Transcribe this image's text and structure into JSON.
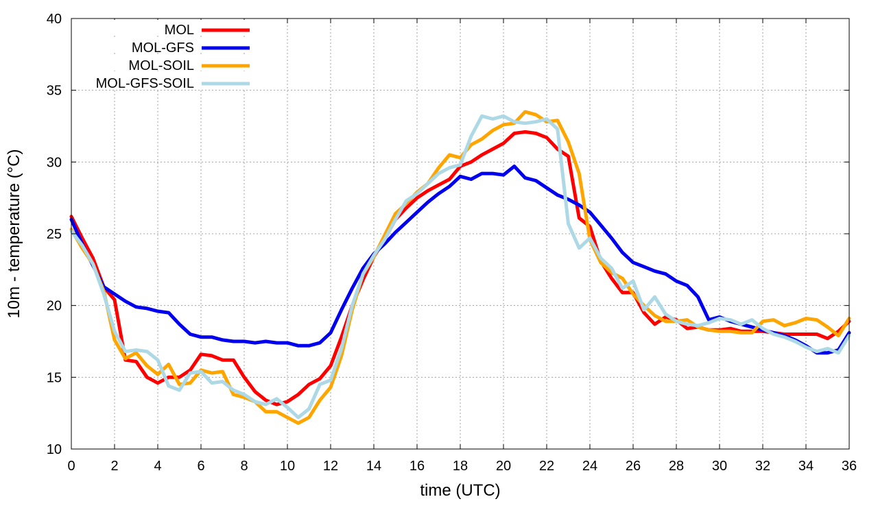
{
  "chart_data": {
    "type": "line",
    "title": "",
    "xlabel": "time (UTC)",
    "ylabel": "10m - temperature (°C)",
    "xlim": [
      0,
      36
    ],
    "ylim": [
      10,
      40
    ],
    "xticks": [
      0,
      2,
      4,
      6,
      8,
      10,
      12,
      14,
      16,
      18,
      20,
      22,
      24,
      26,
      28,
      30,
      32,
      34,
      36
    ],
    "yticks": [
      10,
      15,
      20,
      25,
      30,
      35,
      40
    ],
    "grid": true,
    "legend_position": "top-left",
    "series": [
      {
        "name": "MOL",
        "color": "#ff0000",
        "x": [
          0,
          0.5,
          1,
          1.5,
          2,
          2.5,
          3,
          3.5,
          4,
          4.5,
          5,
          5.5,
          6,
          6.5,
          7,
          7.5,
          8,
          8.5,
          9,
          9.5,
          10,
          10.5,
          11,
          11.5,
          12,
          12.5,
          13,
          13.5,
          14,
          14.5,
          15,
          15.5,
          16,
          16.5,
          17,
          17.5,
          18,
          18.5,
          19,
          19.5,
          20,
          20.5,
          21,
          21.5,
          22,
          22.5,
          23,
          23.5,
          24,
          24.5,
          25,
          25.5,
          26,
          26.5,
          27,
          27.5,
          28,
          28.5,
          29,
          29.5,
          30,
          30.5,
          31,
          31.5,
          32,
          32.5,
          33,
          33.5,
          34,
          34.5,
          35,
          35.5,
          36
        ],
        "y": [
          26.2,
          24.7,
          23.3,
          21.3,
          20.4,
          16.2,
          16.1,
          15.0,
          14.6,
          15.0,
          15.0,
          15.5,
          16.6,
          16.5,
          16.2,
          16.2,
          15.0,
          14.0,
          13.4,
          13.1,
          13.3,
          13.8,
          14.5,
          14.9,
          15.8,
          17.8,
          20.0,
          21.8,
          23.4,
          24.6,
          26.0,
          26.8,
          27.5,
          28.0,
          28.4,
          28.8,
          29.7,
          30.0,
          30.5,
          30.9,
          31.3,
          32.0,
          32.1,
          32.0,
          31.7,
          30.9,
          30.4,
          26.1,
          25.5,
          23.1,
          21.9,
          20.9,
          20.9,
          19.5,
          18.7,
          19.2,
          19.0,
          18.4,
          18.5,
          18.3,
          18.3,
          18.4,
          18.2,
          18.2,
          18.2,
          18.1,
          18.0,
          18.0,
          18.0,
          18.0,
          17.7,
          18.2,
          18.9
        ]
      },
      {
        "name": "MOL-GFS",
        "color": "#0000ee",
        "x": [
          0,
          0.5,
          1,
          1.5,
          2,
          2.5,
          3,
          3.5,
          4,
          4.5,
          5,
          5.5,
          6,
          6.5,
          7,
          7.5,
          8,
          8.5,
          9,
          9.5,
          10,
          10.5,
          11,
          11.5,
          12,
          12.5,
          13,
          13.5,
          14,
          14.5,
          15,
          15.5,
          16,
          16.5,
          17,
          17.5,
          18,
          18.5,
          19,
          19.5,
          20,
          20.5,
          21,
          21.5,
          22,
          22.5,
          23,
          23.5,
          24,
          24.5,
          25,
          25.5,
          26,
          26.5,
          27,
          27.5,
          28,
          28.5,
          29,
          29.5,
          30,
          30.5,
          31,
          31.5,
          32,
          32.5,
          33,
          33.5,
          34,
          34.5,
          35,
          35.5,
          36
        ],
        "y": [
          26.0,
          24.3,
          22.8,
          21.3,
          20.8,
          20.3,
          19.9,
          19.8,
          19.6,
          19.5,
          18.7,
          18.0,
          17.8,
          17.8,
          17.6,
          17.5,
          17.5,
          17.4,
          17.5,
          17.4,
          17.4,
          17.2,
          17.2,
          17.4,
          18.1,
          19.7,
          21.2,
          22.6,
          23.6,
          24.3,
          25.1,
          25.8,
          26.5,
          27.2,
          27.8,
          28.3,
          29.0,
          28.8,
          29.2,
          29.2,
          29.1,
          29.7,
          28.9,
          28.7,
          28.2,
          27.7,
          27.4,
          27.0,
          26.5,
          25.6,
          24.7,
          23.7,
          23.0,
          22.7,
          22.4,
          22.2,
          21.7,
          21.4,
          20.6,
          19.0,
          19.2,
          18.9,
          18.7,
          18.5,
          18.3,
          18.1,
          17.9,
          17.6,
          17.2,
          16.7,
          16.7,
          16.9,
          18.1
        ]
      },
      {
        "name": "MOL-SOIL",
        "color": "#ffa500",
        "x": [
          0,
          0.5,
          1,
          1.5,
          2,
          2.5,
          3,
          3.5,
          4,
          4.5,
          5,
          5.5,
          6,
          6.5,
          7,
          7.5,
          8,
          8.5,
          9,
          9.5,
          10,
          10.5,
          11,
          11.5,
          12,
          12.5,
          13,
          13.5,
          14,
          14.5,
          15,
          15.5,
          16,
          16.5,
          17,
          17.5,
          18,
          18.5,
          19,
          19.5,
          20,
          20.5,
          21,
          21.5,
          22,
          22.5,
          23,
          23.5,
          24,
          24.5,
          25,
          25.5,
          26,
          26.5,
          27,
          27.5,
          28,
          28.5,
          29,
          29.5,
          30,
          30.5,
          31,
          31.5,
          32,
          32.5,
          33,
          33.5,
          34,
          34.5,
          35,
          35.5,
          36
        ],
        "y": [
          25.3,
          24.0,
          22.9,
          21.0,
          17.6,
          16.3,
          16.7,
          15.8,
          15.2,
          15.9,
          14.5,
          14.6,
          15.5,
          15.3,
          15.4,
          13.8,
          13.6,
          13.3,
          12.6,
          12.6,
          12.2,
          11.8,
          12.2,
          13.4,
          14.3,
          16.5,
          19.7,
          22.2,
          23.4,
          24.9,
          26.4,
          27.1,
          27.9,
          28.5,
          29.6,
          30.5,
          30.3,
          31.2,
          31.6,
          32.2,
          32.6,
          32.7,
          33.5,
          33.3,
          32.8,
          32.9,
          31.4,
          29.2,
          24.6,
          23.0,
          22.3,
          21.9,
          20.8,
          20.0,
          19.3,
          18.9,
          18.9,
          19.0,
          18.5,
          18.3,
          18.2,
          18.2,
          18.1,
          18.1,
          18.9,
          19.0,
          18.6,
          18.8,
          19.1,
          19.0,
          18.5,
          17.9,
          19.1
        ]
      },
      {
        "name": "MOL-GFS-SOIL",
        "color": "#add8e6",
        "x": [
          0,
          0.5,
          1,
          1.5,
          2,
          2.5,
          3,
          3.5,
          4,
          4.5,
          5,
          5.5,
          6,
          6.5,
          7,
          7.5,
          8,
          8.5,
          9,
          9.5,
          10,
          10.5,
          11,
          11.5,
          12,
          12.5,
          13,
          13.5,
          14,
          14.5,
          15,
          15.5,
          16,
          16.5,
          17,
          17.5,
          18,
          18.5,
          19,
          19.5,
          20,
          20.5,
          21,
          21.5,
          22,
          22.5,
          23,
          23.5,
          24,
          24.5,
          25,
          25.5,
          26,
          26.5,
          27,
          27.5,
          28,
          28.5,
          29,
          29.5,
          30,
          30.5,
          31,
          31.5,
          32,
          32.5,
          33,
          33.5,
          34,
          34.5,
          35,
          35.5,
          36
        ],
        "y": [
          25.2,
          24.2,
          22.9,
          20.8,
          18.2,
          16.8,
          16.9,
          16.8,
          16.2,
          14.4,
          14.1,
          15.3,
          15.4,
          14.6,
          14.7,
          14.1,
          13.8,
          13.3,
          13.1,
          13.5,
          12.9,
          12.2,
          12.8,
          14.5,
          14.8,
          17.0,
          20.0,
          22.2,
          23.5,
          24.6,
          26.0,
          27.3,
          27.8,
          28.5,
          29.2,
          29.6,
          29.8,
          31.8,
          33.2,
          33.0,
          33.2,
          32.8,
          32.7,
          32.8,
          33.0,
          32.3,
          25.7,
          24.0,
          24.7,
          23.3,
          22.6,
          21.2,
          21.7,
          19.7,
          20.6,
          19.4,
          18.9,
          18.7,
          18.6,
          18.8,
          19.1,
          19.0,
          18.7,
          19.0,
          18.4,
          18.0,
          17.8,
          17.5,
          17.1,
          16.8,
          17.0,
          16.7,
          17.9
        ]
      }
    ]
  }
}
